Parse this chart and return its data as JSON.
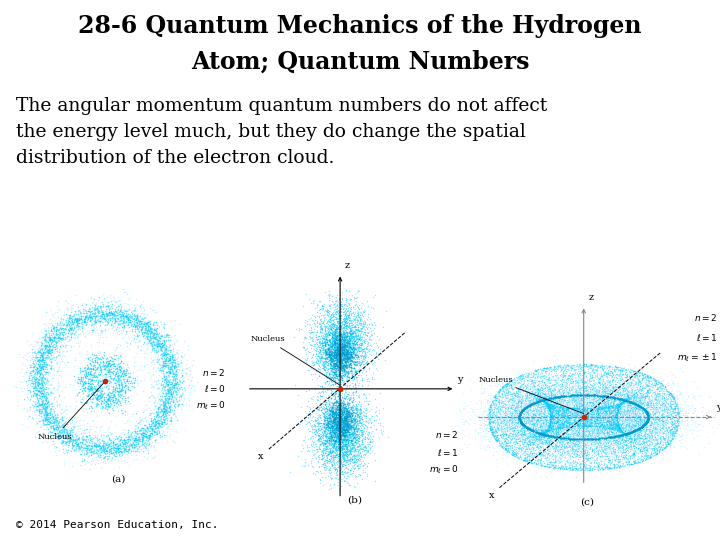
{
  "title_line1": "28-6 Quantum Mechanics of the Hydrogen",
  "title_line2": "Atom; Quantum Numbers",
  "body_text": "The angular momentum quantum numbers do not affect\nthe energy level much, but they do change the spatial\ndistribution of the electron cloud.",
  "copyright": "© 2014 Pearson Education, Inc.",
  "background_color": "#ffffff",
  "title_fontsize": 17,
  "body_fontsize": 13.5,
  "copyright_fontsize": 8,
  "title_font": "serif",
  "body_font": "serif",
  "dot_color": "#00ccff",
  "dot_color_dense": "#009ecc"
}
